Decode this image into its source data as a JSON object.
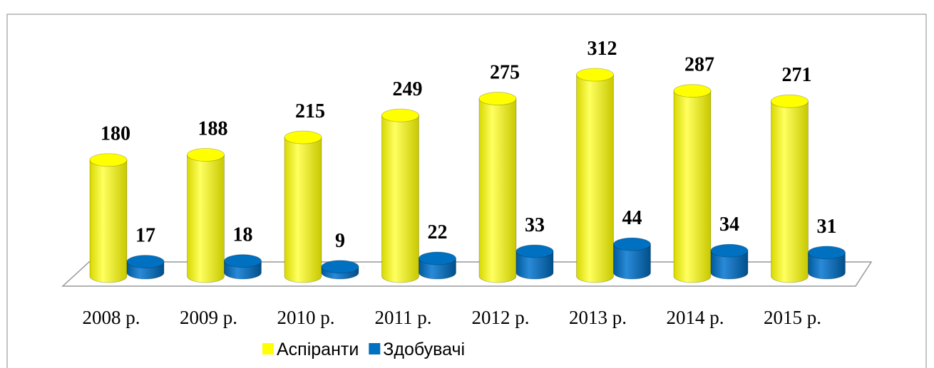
{
  "chart_data": {
    "type": "bar",
    "categories": [
      "2008 р.",
      "2009 р.",
      "2010 р.",
      "2011 р.",
      "2012 р.",
      "2013 р.",
      "2014 р.",
      "2015 р."
    ],
    "series": [
      {
        "name": "Аспіранти",
        "color": "#ffff00",
        "values": [
          180,
          188,
          215,
          249,
          275,
          312,
          287,
          271
        ]
      },
      {
        "name": "Здобувачі",
        "color": "#0070c0",
        "values": [
          17,
          18,
          9,
          22,
          33,
          44,
          34,
          31
        ]
      }
    ],
    "legend": "bottom"
  }
}
